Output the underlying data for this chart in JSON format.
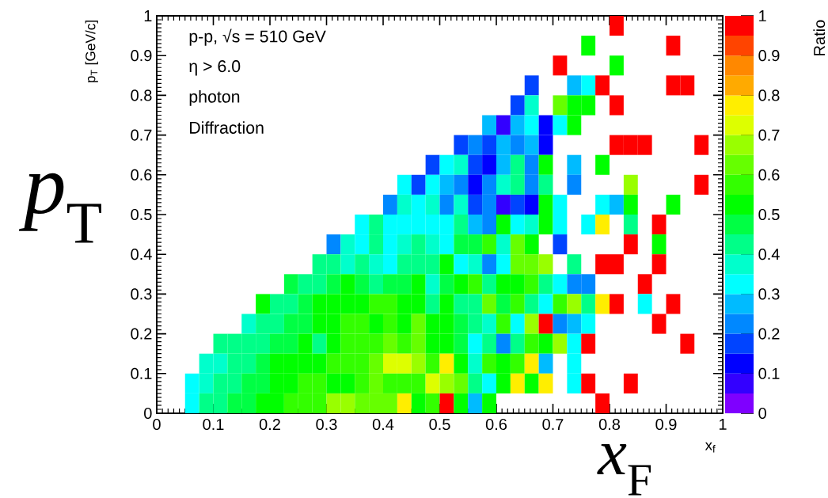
{
  "chart_data": {
    "type": "heatmap",
    "xlabel": "x$_{f}$",
    "ylabel": "p$_{T}$ [GeV/c]",
    "clabel": "Ratio",
    "annotations": [
      "p-p, √s = 510 GeV",
      "η > 6.0",
      "photon",
      "Diffraction",
      "*p*$_{T}$",
      "*x*$_{F}$"
    ],
    "x": [
      0.0125,
      0.0375,
      0.0625,
      0.0875,
      0.1125,
      0.1375,
      0.1625,
      0.1875,
      0.2125,
      0.2375,
      0.2625,
      0.2875,
      0.3125,
      0.3375,
      0.3625,
      0.3875,
      0.4125,
      0.4375,
      0.4625,
      0.4875,
      0.5125,
      0.5375,
      0.5625,
      0.5875,
      0.6125,
      0.6375,
      0.6625,
      0.6875,
      0.7125,
      0.7375,
      0.7625,
      0.7875,
      0.8125,
      0.8375,
      0.8625,
      0.8875,
      0.9125,
      0.9375,
      0.9625,
      0.9875
    ],
    "y": [
      0.975,
      0.925,
      0.875,
      0.825,
      0.775,
      0.725,
      0.675,
      0.625,
      0.575,
      0.525,
      0.475,
      0.425,
      0.375,
      0.325,
      0.275,
      0.225,
      0.175,
      0.125,
      0.075,
      0.025
    ],
    "xlim": [
      0,
      1
    ],
    "ylim": [
      0,
      1
    ],
    "xticks": [
      0,
      0.1,
      0.2,
      0.3,
      0.4,
      0.5,
      0.6,
      0.7,
      0.8,
      0.9,
      1
    ],
    "yticks": [
      0,
      0.1,
      0.2,
      0.3,
      0.4,
      0.5,
      0.6,
      0.7,
      0.8,
      0.9,
      1
    ],
    "clim": [
      0,
      1
    ],
    "cticks": [
      0,
      0.1,
      0.2,
      0.3,
      0.4,
      0.5,
      0.6,
      0.7,
      0.8,
      0.9,
      1
    ],
    "cells": [
      [
        null,
        null,
        null,
        null,
        null,
        null,
        null,
        null,
        null,
        null,
        null,
        null,
        null,
        null,
        null,
        null,
        null,
        null,
        null,
        null,
        null,
        null,
        null,
        null,
        null,
        null,
        null,
        null,
        null,
        null,
        null,
        null,
        0.975,
        null,
        null,
        null,
        null,
        null,
        null,
        null
      ],
      [
        null,
        null,
        null,
        null,
        null,
        null,
        null,
        null,
        null,
        null,
        null,
        null,
        null,
        null,
        null,
        null,
        null,
        null,
        null,
        null,
        null,
        null,
        null,
        null,
        null,
        null,
        null,
        null,
        null,
        null,
        0.525,
        null,
        null,
        null,
        null,
        null,
        0.975,
        null,
        null,
        null
      ],
      [
        null,
        null,
        null,
        null,
        null,
        null,
        null,
        null,
        null,
        null,
        null,
        null,
        null,
        null,
        null,
        null,
        null,
        null,
        null,
        null,
        null,
        null,
        null,
        null,
        null,
        null,
        null,
        null,
        0.975,
        null,
        null,
        null,
        0.525,
        null,
        null,
        null,
        null,
        null,
        null,
        null
      ],
      [
        null,
        null,
        null,
        null,
        null,
        null,
        null,
        null,
        null,
        null,
        null,
        null,
        null,
        null,
        null,
        null,
        null,
        null,
        null,
        null,
        null,
        null,
        null,
        null,
        null,
        null,
        0.175,
        null,
        null,
        0.275,
        0.325,
        0.975,
        null,
        null,
        null,
        null,
        0.975,
        0.975,
        null,
        null
      ],
      [
        null,
        null,
        null,
        null,
        null,
        null,
        null,
        null,
        null,
        null,
        null,
        null,
        null,
        null,
        null,
        null,
        null,
        null,
        null,
        null,
        null,
        null,
        null,
        null,
        null,
        0.175,
        0.375,
        null,
        0.625,
        0.525,
        0.525,
        null,
        0.975,
        null,
        null,
        null,
        null,
        null,
        null,
        null
      ],
      [
        null,
        null,
        null,
        null,
        null,
        null,
        null,
        null,
        null,
        null,
        null,
        null,
        null,
        null,
        null,
        null,
        null,
        null,
        null,
        null,
        null,
        null,
        null,
        0.275,
        0.075,
        0.275,
        0.325,
        0.125,
        0.325,
        0.525,
        null,
        null,
        null,
        null,
        null,
        null,
        null,
        null,
        null,
        null
      ],
      [
        null,
        null,
        null,
        null,
        null,
        null,
        null,
        null,
        null,
        null,
        null,
        null,
        null,
        null,
        null,
        null,
        null,
        null,
        null,
        null,
        null,
        0.175,
        0.225,
        0.175,
        0.275,
        0.225,
        0.275,
        0.125,
        null,
        null,
        null,
        null,
        0.975,
        0.975,
        0.975,
        null,
        null,
        null,
        0.975,
        null
      ],
      [
        null,
        null,
        null,
        null,
        null,
        null,
        null,
        null,
        null,
        null,
        null,
        null,
        null,
        null,
        null,
        null,
        null,
        null,
        null,
        0.175,
        0.325,
        0.375,
        0.175,
        0.125,
        0.275,
        0.425,
        0.225,
        0.525,
        null,
        0.275,
        null,
        0.525,
        null,
        null,
        null,
        null,
        null,
        null,
        null,
        null
      ],
      [
        null,
        null,
        null,
        null,
        null,
        null,
        null,
        null,
        null,
        null,
        null,
        null,
        null,
        null,
        null,
        null,
        null,
        0.325,
        0.175,
        0.325,
        0.275,
        0.225,
        0.125,
        0.225,
        0.375,
        0.425,
        0.225,
        0.425,
        null,
        0.225,
        null,
        null,
        null,
        0.675,
        null,
        null,
        null,
        null,
        0.975,
        null
      ],
      [
        null,
        null,
        null,
        null,
        null,
        null,
        null,
        null,
        null,
        null,
        null,
        null,
        null,
        null,
        null,
        null,
        0.225,
        0.375,
        0.325,
        0.375,
        0.225,
        0.375,
        0.175,
        0.225,
        0.075,
        0.175,
        0.125,
        0.525,
        0.325,
        null,
        null,
        0.325,
        0.275,
        0.525,
        null,
        null,
        0.525,
        null,
        null,
        null
      ],
      [
        null,
        null,
        null,
        null,
        null,
        null,
        null,
        null,
        null,
        null,
        null,
        null,
        null,
        null,
        0.325,
        0.425,
        0.325,
        0.325,
        0.325,
        0.325,
        0.325,
        0.425,
        0.275,
        0.225,
        0.525,
        0.325,
        0.375,
        0.525,
        0.325,
        null,
        0.325,
        0.775,
        null,
        0.425,
        null,
        0.975,
        null,
        null,
        null,
        null
      ],
      [
        null,
        null,
        null,
        null,
        null,
        null,
        null,
        null,
        null,
        null,
        null,
        null,
        0.225,
        0.375,
        0.325,
        0.425,
        0.325,
        0.375,
        0.425,
        0.375,
        0.325,
        0.475,
        0.475,
        0.575,
        0.375,
        0.625,
        0.525,
        null,
        0.175,
        null,
        null,
        null,
        null,
        0.975,
        null,
        0.525,
        null,
        null,
        null,
        null
      ],
      [
        null,
        null,
        null,
        null,
        null,
        null,
        null,
        null,
        null,
        null,
        null,
        0.425,
        0.425,
        0.375,
        0.425,
        0.375,
        0.325,
        0.425,
        0.425,
        0.425,
        0.525,
        0.325,
        0.375,
        0.225,
        0.325,
        0.625,
        0.625,
        0.675,
        null,
        0.425,
        null,
        0.975,
        0.975,
        null,
        null,
        0.975,
        null,
        null,
        null,
        null
      ],
      [
        null,
        null,
        null,
        null,
        null,
        null,
        null,
        null,
        null,
        0.475,
        0.425,
        0.425,
        0.475,
        0.525,
        0.475,
        0.425,
        0.475,
        0.475,
        0.525,
        0.375,
        0.475,
        0.525,
        0.575,
        0.425,
        0.525,
        0.525,
        0.575,
        0.425,
        0.325,
        0.225,
        0.225,
        null,
        null,
        null,
        0.975,
        null,
        null,
        null,
        null,
        null
      ],
      [
        null,
        null,
        null,
        null,
        null,
        null,
        null,
        0.525,
        0.425,
        0.425,
        0.475,
        0.525,
        0.525,
        0.525,
        0.525,
        0.575,
        0.575,
        0.525,
        0.525,
        0.425,
        0.525,
        0.425,
        0.425,
        0.625,
        0.475,
        0.575,
        0.425,
        0.325,
        0.575,
        0.675,
        0.425,
        0.775,
        0.975,
        null,
        0.325,
        null,
        0.975,
        null,
        null,
        null
      ],
      [
        null,
        null,
        null,
        null,
        null,
        null,
        0.375,
        0.425,
        0.425,
        0.475,
        0.475,
        0.525,
        0.525,
        0.575,
        0.575,
        0.525,
        0.575,
        0.525,
        0.625,
        0.525,
        0.525,
        0.475,
        0.425,
        0.375,
        0.575,
        0.325,
        0.675,
        0.975,
        0.225,
        0.275,
        0.325,
        null,
        null,
        null,
        null,
        0.975,
        null,
        null,
        null,
        null
      ],
      [
        null,
        null,
        null,
        null,
        0.425,
        0.425,
        0.425,
        0.425,
        0.475,
        0.475,
        0.525,
        0.425,
        0.525,
        0.575,
        0.575,
        0.575,
        0.625,
        0.575,
        0.625,
        0.525,
        0.525,
        0.475,
        0.325,
        0.425,
        0.225,
        0.425,
        0.575,
        0.525,
        0.675,
        0.325,
        0.975,
        null,
        null,
        null,
        null,
        null,
        null,
        0.975,
        null,
        null
      ],
      [
        null,
        null,
        null,
        0.375,
        0.375,
        0.425,
        0.425,
        0.475,
        0.525,
        0.525,
        0.525,
        0.525,
        0.575,
        0.575,
        0.575,
        0.625,
        0.725,
        0.725,
        0.675,
        0.575,
        0.775,
        0.525,
        0.375,
        0.575,
        0.525,
        0.575,
        0.775,
        0.275,
        null,
        0.325,
        null,
        null,
        null,
        null,
        null,
        null,
        null,
        null,
        null,
        null
      ],
      [
        null,
        null,
        0.325,
        0.375,
        0.425,
        0.425,
        0.475,
        0.475,
        0.525,
        0.525,
        0.575,
        0.575,
        0.525,
        0.525,
        0.575,
        0.625,
        0.575,
        0.575,
        0.575,
        0.725,
        0.675,
        0.625,
        0.425,
        0.325,
        0.525,
        0.775,
        0.525,
        0.775,
        null,
        0.325,
        0.975,
        null,
        null,
        0.975,
        null,
        null,
        null,
        null,
        null,
        null
      ],
      [
        null,
        null,
        0.325,
        0.425,
        0.425,
        0.475,
        0.475,
        0.525,
        0.525,
        0.575,
        0.575,
        0.575,
        0.675,
        0.675,
        0.625,
        0.625,
        0.625,
        0.775,
        0.525,
        0.575,
        0.975,
        0.525,
        0.275,
        0.525,
        null,
        null,
        null,
        null,
        null,
        null,
        null,
        0.975,
        null,
        null,
        null,
        null,
        null,
        null,
        null,
        null
      ]
    ]
  }
}
